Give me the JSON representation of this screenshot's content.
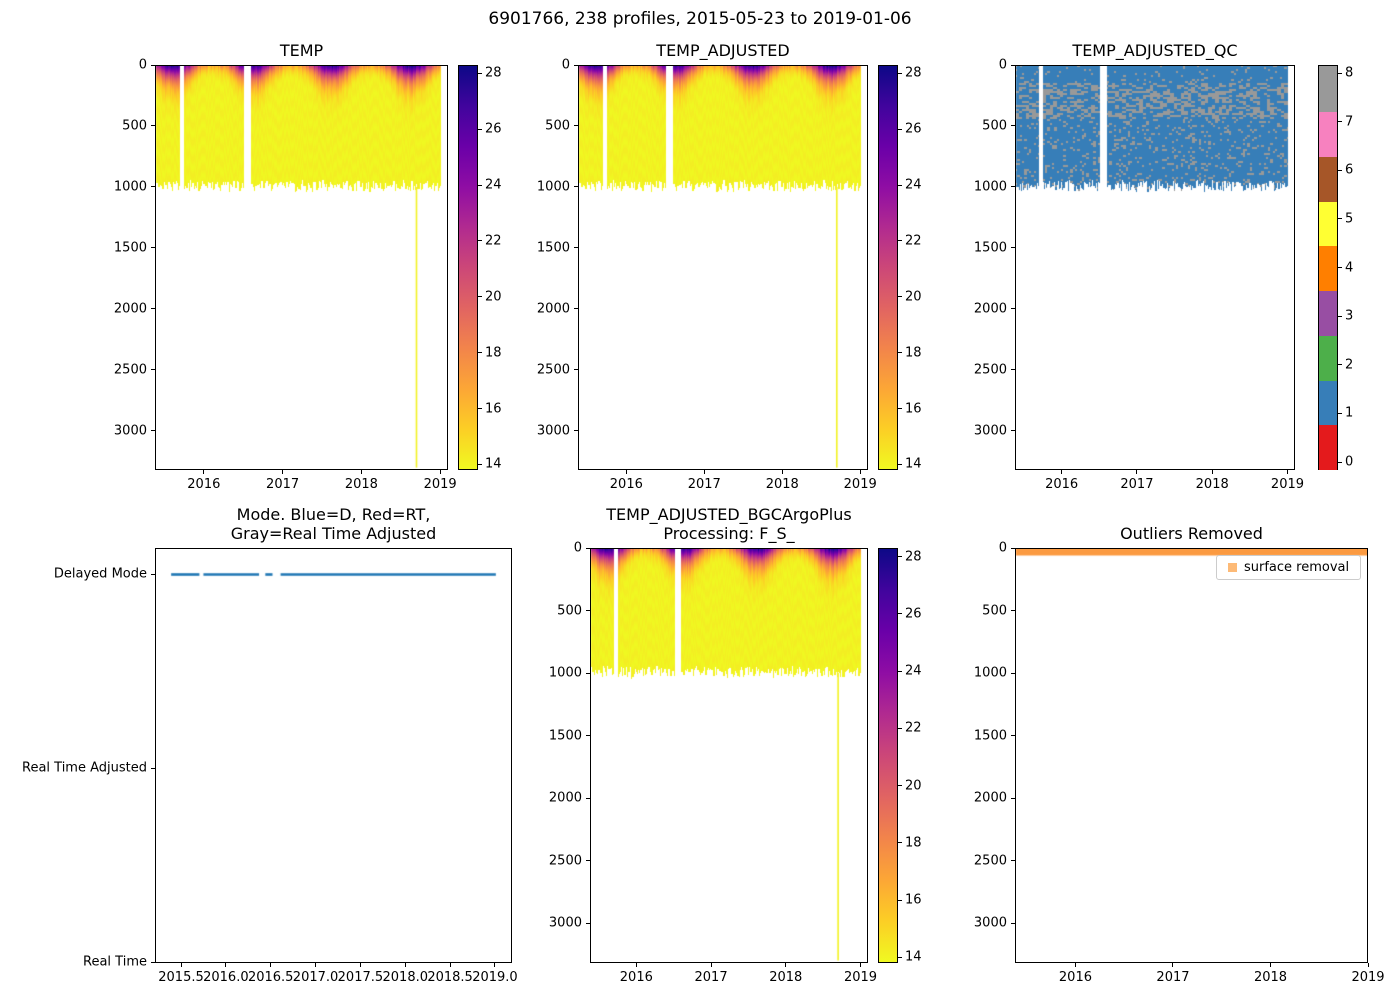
{
  "figure": {
    "suptitle": "6901766, 238 profiles, 2015-05-23 to 2019-01-06"
  },
  "colormaps": {
    "plasma_stops": [
      {
        "p": 0.0,
        "c": "#0d0887"
      },
      {
        "p": 0.1,
        "c": "#41049d"
      },
      {
        "p": 0.2,
        "c": "#6a00a8"
      },
      {
        "p": 0.3,
        "c": "#8f0da4"
      },
      {
        "p": 0.4,
        "c": "#b12a90"
      },
      {
        "p": 0.5,
        "c": "#cc4778"
      },
      {
        "p": 0.6,
        "c": "#e16462"
      },
      {
        "p": 0.7,
        "c": "#f2844b"
      },
      {
        "p": 0.8,
        "c": "#fca636"
      },
      {
        "p": 0.9,
        "c": "#fcce25"
      },
      {
        "p": 1.0,
        "c": "#f0f921"
      }
    ],
    "set1": [
      "#e41a1c",
      "#377eb8",
      "#4daf4a",
      "#984ea3",
      "#ff7f00",
      "#ffff33",
      "#a65628",
      "#f781bf",
      "#999999"
    ]
  },
  "chart_data": [
    {
      "id": "temp",
      "type": "temp_heatmap",
      "title": "TEMP",
      "xlim": [
        2015.38,
        2019.1
      ],
      "ylim": [
        3320,
        0
      ],
      "x_ticks": {
        "values": [
          2016,
          2017,
          2018,
          2019
        ],
        "labels": [
          "2016",
          "2017",
          "2018",
          "2019"
        ]
      },
      "y_ticks": {
        "values": [
          0,
          500,
          1000,
          1500,
          2000,
          2500,
          3000
        ],
        "labels": [
          "0",
          "500",
          "1000",
          "1500",
          "2000",
          "2500",
          "3000"
        ]
      },
      "colorbar": {
        "type": "gradient",
        "colormap": "plasma_reversed",
        "vmin": 13.8,
        "vmax": 28.3,
        "ticks": {
          "values": [
            14,
            16,
            18,
            20,
            22,
            24,
            26,
            28
          ],
          "labels": [
            "14",
            "16",
            "18",
            "20",
            "22",
            "24",
            "26",
            "28"
          ]
        }
      },
      "data_summary": {
        "time_start": 2015.39,
        "time_end": 2019.01,
        "n_profiles": 238,
        "profile_depth_range_m": [
          950,
          1035
        ],
        "gaps": [
          [
            2015.705,
            2015.75
          ],
          [
            2016.52,
            2016.61
          ]
        ],
        "deep_profile": {
          "time": 2018.7,
          "max_depth": 3300
        },
        "surface_temp_summer_c": 28,
        "surface_temp_winter_c": 17,
        "deep_temp_c": 14
      }
    },
    {
      "id": "temp_adjusted",
      "type": "temp_heatmap",
      "title": "TEMP_ADJUSTED",
      "xlim": [
        2015.38,
        2019.1
      ],
      "ylim": [
        3320,
        0
      ],
      "x_ticks": {
        "values": [
          2016,
          2017,
          2018,
          2019
        ],
        "labels": [
          "2016",
          "2017",
          "2018",
          "2019"
        ]
      },
      "y_ticks": {
        "values": [
          0,
          500,
          1000,
          1500,
          2000,
          2500,
          3000
        ],
        "labels": [
          "0",
          "500",
          "1000",
          "1500",
          "2000",
          "2500",
          "3000"
        ]
      },
      "colorbar": {
        "type": "gradient",
        "colormap": "plasma_reversed",
        "vmin": 13.8,
        "vmax": 28.3,
        "ticks": {
          "values": [
            14,
            16,
            18,
            20,
            22,
            24,
            26,
            28
          ],
          "labels": [
            "14",
            "16",
            "18",
            "20",
            "22",
            "24",
            "26",
            "28"
          ]
        }
      },
      "data_summary": {
        "time_start": 2015.39,
        "time_end": 2019.01,
        "n_profiles": 238,
        "profile_depth_range_m": [
          950,
          1035
        ],
        "gaps": [
          [
            2015.705,
            2015.75
          ],
          [
            2016.52,
            2016.61
          ]
        ],
        "deep_profile": {
          "time": 2018.7,
          "max_depth": 3300
        },
        "surface_temp_summer_c": 28,
        "surface_temp_winter_c": 17,
        "deep_temp_c": 14
      }
    },
    {
      "id": "temp_adjusted_qc",
      "type": "qc_heatmap",
      "title": "TEMP_ADJUSTED_QC",
      "xlim": [
        2015.38,
        2019.1
      ],
      "ylim": [
        3320,
        0
      ],
      "x_ticks": {
        "values": [
          2016,
          2017,
          2018,
          2019
        ],
        "labels": [
          "2016",
          "2017",
          "2018",
          "2019"
        ]
      },
      "y_ticks": {
        "values": [
          0,
          500,
          1000,
          1500,
          2000,
          2500,
          3000
        ],
        "labels": [
          "0",
          "500",
          "1000",
          "1500",
          "2000",
          "2500",
          "3000"
        ]
      },
      "colorbar": {
        "type": "discrete",
        "colormap": "set1",
        "ticks": {
          "values": [
            0,
            1,
            2,
            3,
            4,
            5,
            6,
            7,
            8
          ],
          "labels": [
            "0",
            "1",
            "2",
            "3",
            "4",
            "5",
            "6",
            "7",
            "8"
          ]
        }
      },
      "data_summary": {
        "time_start": 2015.39,
        "time_end": 2019.01,
        "n_profiles": 238,
        "profile_depth_range_m": [
          950,
          1035
        ],
        "gaps": [
          [
            2015.705,
            2015.75
          ],
          [
            2016.52,
            2016.61
          ]
        ],
        "dominant_flag": 1,
        "speckle_flag": 8,
        "speckle_band_depth_m": [
          150,
          440
        ]
      }
    },
    {
      "id": "mode",
      "type": "category_line",
      "title": "Mode. Blue=D, Red=RT,\nGray=Real Time Adjusted",
      "xlim": [
        2015.21,
        2019.19
      ],
      "x_ticks": {
        "values": [
          2015.5,
          2016.0,
          2016.5,
          2017.0,
          2017.5,
          2018.0,
          2018.5,
          2019.0
        ],
        "labels": [
          "2015.5",
          "2016.0",
          "2016.5",
          "2017.0",
          "2017.5",
          "2018.0",
          "2018.5",
          "2019.0"
        ]
      },
      "y_categories": [
        "Delayed Mode",
        "Real Time Adjusted",
        "Real Time"
      ],
      "series": [
        {
          "name": "data-mode",
          "color": "#1f77b4",
          "category": "Delayed Mode",
          "segments": [
            [
              2015.39,
              2015.705
            ],
            [
              2015.75,
              2016.37
            ],
            [
              2016.44,
              2016.52
            ],
            [
              2016.61,
              2019.01
            ]
          ]
        }
      ]
    },
    {
      "id": "temp_adjusted_bgc",
      "type": "temp_heatmap",
      "title": "TEMP_ADJUSTED_BGCArgoPlus\nProcessing: F_S_",
      "xlim": [
        2015.38,
        2019.1
      ],
      "ylim": [
        3320,
        0
      ],
      "x_ticks": {
        "values": [
          2016,
          2017,
          2018,
          2019
        ],
        "labels": [
          "2016",
          "2017",
          "2018",
          "2019"
        ]
      },
      "y_ticks": {
        "values": [
          0,
          500,
          1000,
          1500,
          2000,
          2500,
          3000
        ],
        "labels": [
          "0",
          "500",
          "1000",
          "1500",
          "2000",
          "2500",
          "3000"
        ]
      },
      "colorbar": {
        "type": "gradient",
        "colormap": "plasma_reversed",
        "vmin": 13.8,
        "vmax": 28.3,
        "ticks": {
          "values": [
            14,
            16,
            18,
            20,
            22,
            24,
            26,
            28
          ],
          "labels": [
            "14",
            "16",
            "18",
            "20",
            "22",
            "24",
            "26",
            "28"
          ]
        }
      },
      "data_summary": {
        "time_start": 2015.39,
        "time_end": 2019.01,
        "n_profiles": 238,
        "profile_depth_range_m": [
          950,
          1035
        ],
        "gaps": [
          [
            2015.705,
            2015.75
          ],
          [
            2016.52,
            2016.61
          ]
        ],
        "deep_profile": {
          "time": 2018.7,
          "max_depth": 3300
        },
        "surface_temp_summer_c": 28,
        "surface_temp_winter_c": 17,
        "deep_temp_c": 14
      }
    },
    {
      "id": "outliers",
      "type": "outlier_band",
      "title": "Outliers Removed",
      "xlim": [
        2015.38,
        2019.0
      ],
      "ylim": [
        3320,
        0
      ],
      "x_ticks": {
        "values": [
          2016,
          2017,
          2018,
          2019
        ],
        "labels": [
          "2016",
          "2017",
          "2018",
          "2019"
        ]
      },
      "y_ticks": {
        "values": [
          0,
          500,
          1000,
          1500,
          2000,
          2500,
          3000
        ],
        "labels": [
          "0",
          "500",
          "1000",
          "1500",
          "2000",
          "2500",
          "3000"
        ]
      },
      "legend": {
        "label": "surface removal",
        "marker_color": "#fdba77",
        "position": "upper right"
      },
      "band": {
        "time_range": [
          2015.39,
          2019.0
        ],
        "depth_range_m": [
          0,
          60
        ],
        "color": "#fb9a41"
      }
    }
  ]
}
